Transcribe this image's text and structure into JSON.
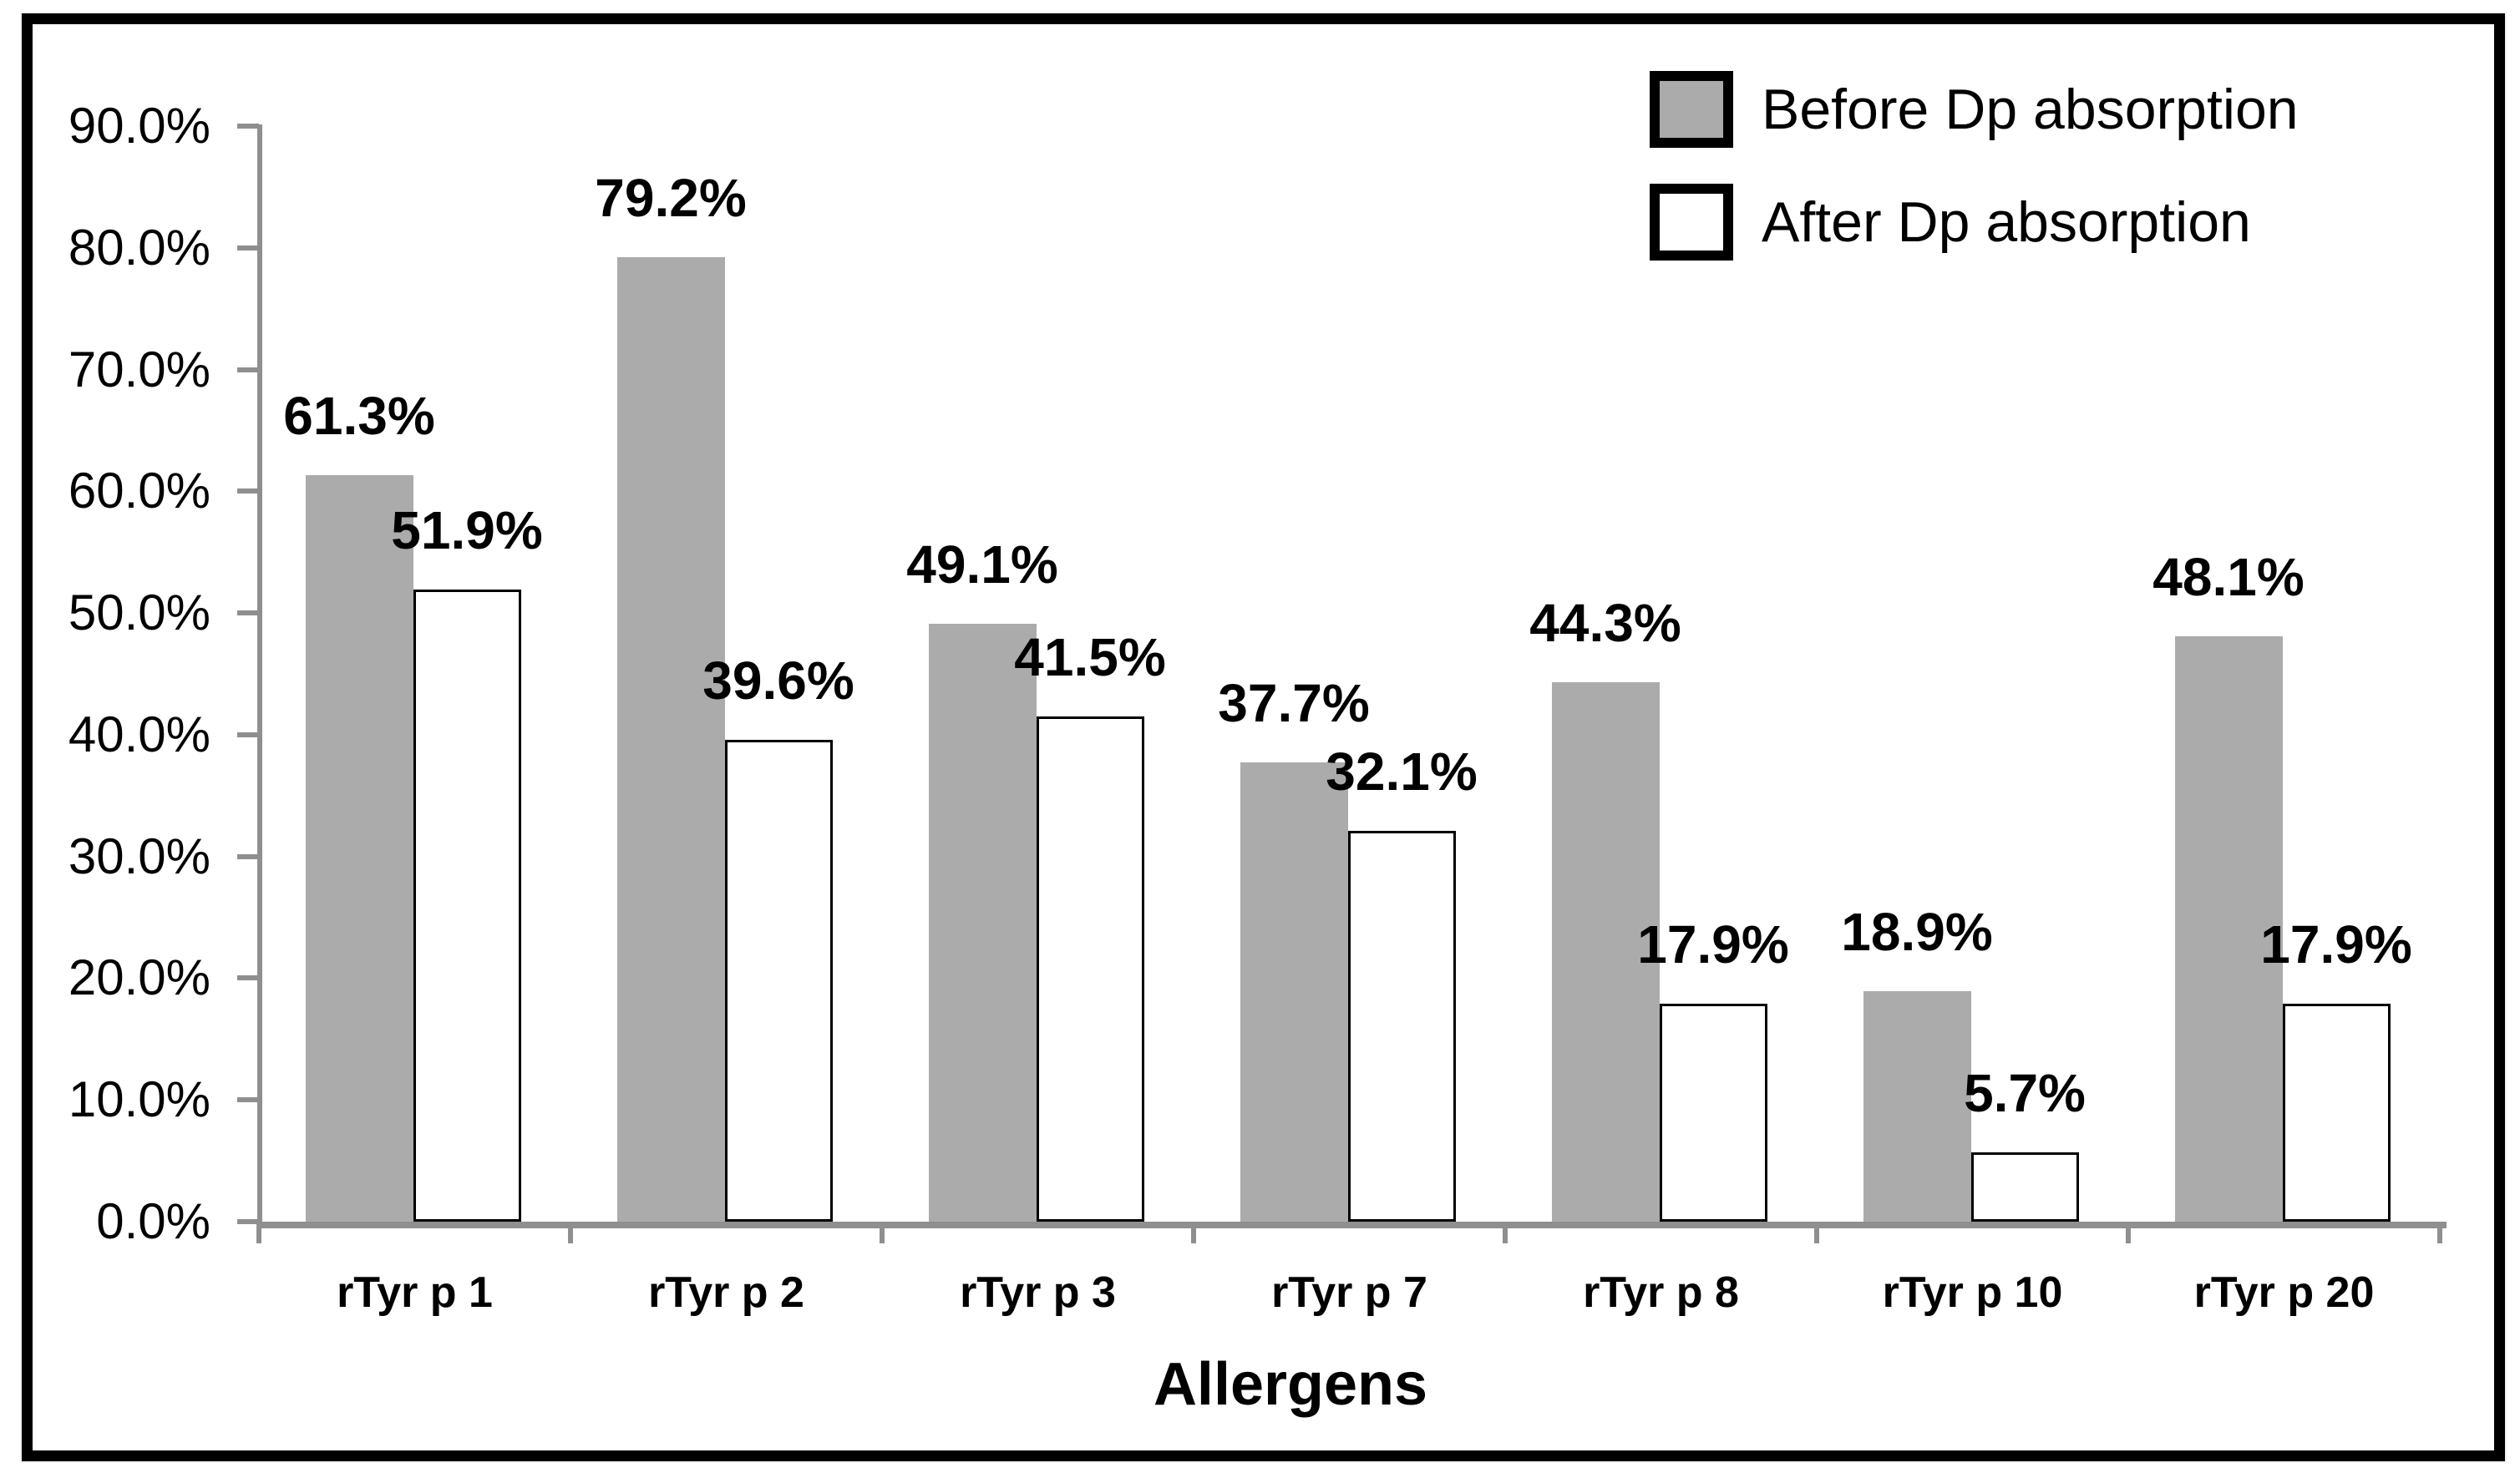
{
  "chart_data": {
    "type": "bar",
    "title": "",
    "xlabel": "Allergens",
    "ylabel": "",
    "categories": [
      "rTyr p 1",
      "rTyr p 2",
      "rTyr p 3",
      "rTyr p 7",
      "rTyr p 8",
      "rTyr p 10",
      "rTyr p 20"
    ],
    "series": [
      {
        "name": "Before Dp absorption",
        "color": "#ababab",
        "values": [
          61.3,
          79.2,
          49.1,
          37.7,
          44.3,
          18.9,
          48.1
        ],
        "labels": [
          "61.3%",
          "79.2%",
          "49.1%",
          "37.7%",
          "44.3%",
          "18.9%",
          "48.1%"
        ]
      },
      {
        "name": "After Dp absorption",
        "color": "#ffffff",
        "values": [
          51.9,
          39.6,
          41.5,
          32.1,
          17.9,
          5.7,
          17.9
        ],
        "labels": [
          "51.9%",
          "39.6%",
          "41.5%",
          "32.1%",
          "17.9%",
          "5.7%",
          "17.9%"
        ]
      }
    ],
    "ylim": [
      0,
      90
    ],
    "ytick_step": 10,
    "ytick_labels": [
      "0.0%",
      "10.0%",
      "20.0%",
      "30.0%",
      "40.0%",
      "50.0%",
      "60.0%",
      "70.0%",
      "80.0%",
      "90.0%"
    ],
    "grid": false,
    "data_labels": true,
    "legend_position": "top-right"
  },
  "colors": {
    "bar_before": "#ababab",
    "bar_after": "#ffffff",
    "axis": "#8f8f8f",
    "frame": "#000000",
    "text": "#000000"
  }
}
